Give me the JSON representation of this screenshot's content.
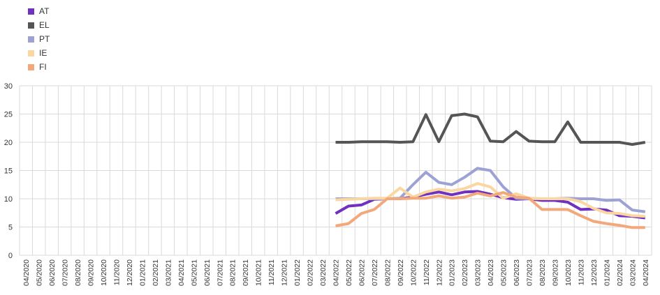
{
  "chart_data": {
    "type": "line",
    "title": "",
    "xlabel": "",
    "ylabel": "",
    "ylim": [
      0,
      30
    ],
    "yticks": [
      0,
      5,
      10,
      15,
      20,
      25,
      30
    ],
    "grid": true,
    "legend_position": "top-left",
    "x": [
      "04/2020",
      "05/2020",
      "06/2020",
      "07/2020",
      "08/2020",
      "09/2020",
      "10/2020",
      "11/2020",
      "12/2020",
      "01/2021",
      "02/2021",
      "03/2021",
      "04/2021",
      "05/2021",
      "06/2021",
      "07/2021",
      "08/2021",
      "09/2021",
      "10/2021",
      "11/2021",
      "12/2021",
      "01/2022",
      "02/2022",
      "03/2022",
      "04/2022",
      "05/2022",
      "06/2022",
      "07/2022",
      "08/2022",
      "09/2022",
      "10/2022",
      "11/2022",
      "12/2022",
      "01/2023",
      "02/2023",
      "03/2023",
      "04/2023",
      "05/2023",
      "06/2023",
      "07/2023",
      "08/2023",
      "09/2023",
      "10/2023",
      "11/2023",
      "12/2023",
      "01/2024",
      "02/2024",
      "03/2024",
      "04/2024"
    ],
    "series": [
      {
        "name": "AT",
        "color": "#7030c0",
        "values": [
          null,
          null,
          null,
          null,
          null,
          null,
          null,
          null,
          null,
          null,
          null,
          null,
          null,
          null,
          null,
          null,
          null,
          null,
          null,
          null,
          null,
          null,
          null,
          null,
          7.4,
          8.7,
          8.9,
          9.9,
          10.0,
          10.0,
          10.3,
          10.8,
          11.2,
          10.7,
          11.2,
          11.3,
          10.8,
          10.2,
          9.9,
          10.0,
          9.7,
          9.7,
          9.4,
          8.1,
          8.2,
          8.0,
          7.0,
          6.9,
          6.6
        ]
      },
      {
        "name": "EL",
        "color": "#555555",
        "values": [
          null,
          null,
          null,
          null,
          null,
          null,
          null,
          null,
          null,
          null,
          null,
          null,
          null,
          null,
          null,
          null,
          null,
          null,
          null,
          null,
          null,
          null,
          null,
          null,
          20.0,
          20.0,
          20.1,
          20.1,
          20.1,
          20.0,
          20.1,
          24.9,
          20.1,
          24.7,
          25.0,
          24.5,
          20.2,
          20.1,
          21.9,
          20.2,
          20.1,
          20.1,
          23.6,
          20.0,
          20.0,
          20.0,
          20.0,
          19.6,
          20.0
        ]
      },
      {
        "name": "PT",
        "color": "#9ca3d4",
        "values": [
          null,
          null,
          null,
          null,
          null,
          null,
          null,
          null,
          null,
          null,
          null,
          null,
          null,
          null,
          null,
          null,
          null,
          null,
          null,
          null,
          null,
          null,
          null,
          null,
          10.0,
          10.0,
          10.0,
          10.0,
          10.0,
          10.1,
          12.5,
          14.7,
          12.9,
          12.5,
          13.8,
          15.4,
          15.0,
          12.1,
          10.1,
          10.0,
          10.0,
          10.0,
          10.1,
          10.0,
          10.0,
          9.7,
          9.8,
          8.0,
          7.7
        ]
      },
      {
        "name": "IE",
        "color": "#fad7a0",
        "values": [
          null,
          null,
          null,
          null,
          null,
          null,
          null,
          null,
          null,
          null,
          null,
          null,
          null,
          null,
          null,
          null,
          null,
          null,
          null,
          null,
          null,
          null,
          null,
          null,
          9.8,
          9.9,
          10.0,
          10.1,
          10.1,
          11.9,
          10.3,
          11.2,
          11.7,
          11.4,
          11.8,
          12.7,
          12.1,
          10.1,
          10.9,
          10.1,
          10.0,
          10.0,
          10.0,
          9.5,
          8.3,
          7.5,
          7.4,
          7.0,
          6.9
        ]
      },
      {
        "name": "FI",
        "color": "#f2a87b",
        "values": [
          null,
          null,
          null,
          null,
          null,
          null,
          null,
          null,
          null,
          null,
          null,
          null,
          null,
          null,
          null,
          null,
          null,
          null,
          null,
          null,
          null,
          null,
          null,
          null,
          5.2,
          5.6,
          7.4,
          8.1,
          10.0,
          10.0,
          10.1,
          10.1,
          10.5,
          10.1,
          10.3,
          11.0,
          10.5,
          11.1,
          10.3,
          10.1,
          8.1,
          8.1,
          8.1,
          7.0,
          6.0,
          5.6,
          5.3,
          4.9,
          4.9
        ]
      }
    ]
  }
}
